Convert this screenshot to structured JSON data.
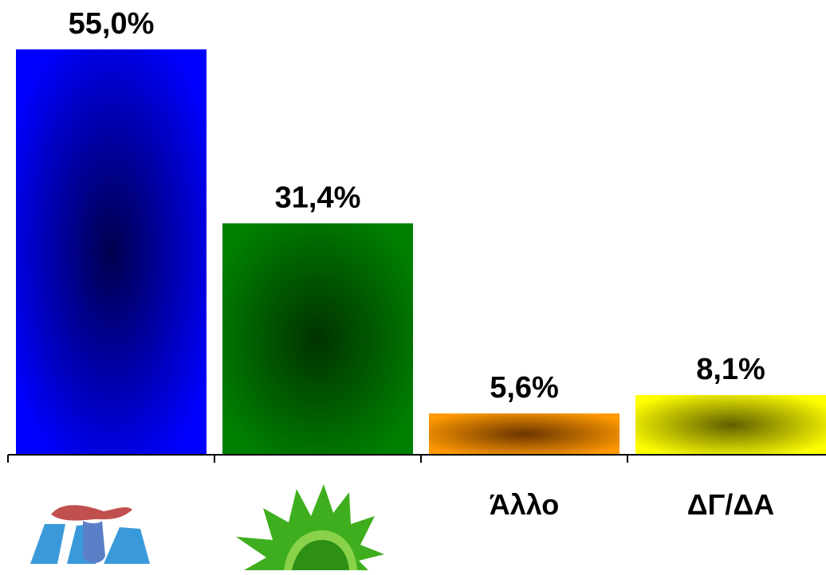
{
  "chart_data": {
    "type": "bar",
    "categories": [
      "ND",
      "PASOK",
      "Άλλο",
      "ΔΓ/ΔΑ"
    ],
    "values": [
      55.0,
      31.4,
      5.6,
      8.1
    ],
    "value_labels": [
      "55,0%",
      "31,4%",
      "5,6%",
      "8,1%"
    ],
    "category_labels": [
      "",
      "",
      "Άλλο",
      "ΔΓ/ΔΑ"
    ],
    "category_icons": [
      "nd-party-logo-icon",
      "pasok-sun-logo-icon",
      "",
      ""
    ],
    "colors": [
      "#0000ff",
      "#008000",
      "#ff9900",
      "#ffff00"
    ],
    "center_colors": [
      "#00004d",
      "#003300",
      "#6b3500",
      "#5f5f00"
    ],
    "ylim": [
      0,
      55.0
    ],
    "grid": false,
    "legend": "none"
  }
}
